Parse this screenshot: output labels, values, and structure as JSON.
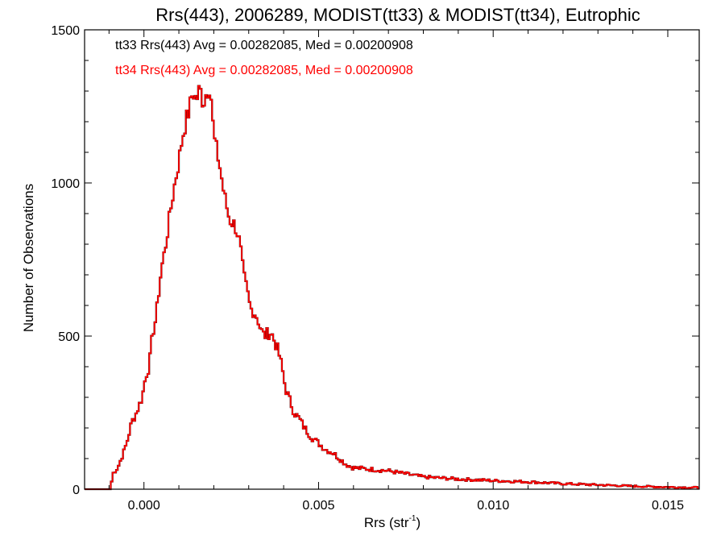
{
  "chart_data": {
    "type": "histogram",
    "title": "Rrs(443), 2006289, MODIST(tt33) & MODIST(tt34), Eutrophic",
    "xlabel_main": "Rrs (str",
    "xlabel_sup": "-1",
    "xlabel_close": ")",
    "ylabel": "Number of Observations",
    "xlim": [
      -0.0017,
      0.0159
    ],
    "ylim": [
      0,
      1500
    ],
    "x_ticks": [
      0.0,
      0.005,
      0.01,
      0.015
    ],
    "x_tick_labels": [
      "0.000",
      "0.005",
      "0.010",
      "0.015"
    ],
    "y_ticks": [
      0,
      500,
      1000,
      1500
    ],
    "y_tick_labels": [
      "0",
      "500",
      "1000",
      "1500"
    ],
    "grid": false,
    "annotations": [
      {
        "text": "tt33 Rrs(443) Avg = 0.00282085, Med = 0.00200908",
        "color": "#000000"
      },
      {
        "text": "tt34 Rrs(443) Avg = 0.00282085, Med = 0.00200908",
        "color": "#ff0000"
      }
    ],
    "series": [
      {
        "color_back": "#000000",
        "color": "#ff0000"
      }
    ],
    "curve": [
      [
        -0.0017,
        0
      ],
      [
        -0.00095,
        0
      ],
      [
        -0.0009,
        50
      ],
      [
        -0.00075,
        70
      ],
      [
        -0.00065,
        100
      ],
      [
        -0.00055,
        130
      ],
      [
        -0.00045,
        170
      ],
      [
        -0.00035,
        220
      ],
      [
        -0.00025,
        240
      ],
      [
        -0.00015,
        270
      ],
      [
        -5e-05,
        300
      ],
      [
        5e-05,
        370
      ],
      [
        0.00015,
        400
      ],
      [
        0.00025,
        510
      ],
      [
        0.00035,
        560
      ],
      [
        0.0004,
        620
      ],
      [
        0.0005,
        720
      ],
      [
        0.0006,
        780
      ],
      [
        0.0007,
        860
      ],
      [
        0.0008,
        940
      ],
      [
        0.0009,
        1010
      ],
      [
        0.001,
        1070
      ],
      [
        0.0011,
        1150
      ],
      [
        0.0012,
        1200
      ],
      [
        0.0013,
        1240
      ],
      [
        0.0014,
        1300
      ],
      [
        0.0015,
        1270
      ],
      [
        0.0016,
        1310
      ],
      [
        0.0017,
        1260
      ],
      [
        0.0018,
        1300
      ],
      [
        0.0019,
        1320
      ],
      [
        0.002,
        1150
      ],
      [
        0.00215,
        1070
      ],
      [
        0.0023,
        960
      ],
      [
        0.00245,
        880
      ],
      [
        0.00255,
        870
      ],
      [
        0.00265,
        850
      ],
      [
        0.00275,
        800
      ],
      [
        0.00285,
        700
      ],
      [
        0.00295,
        650
      ],
      [
        0.00305,
        590
      ],
      [
        0.00315,
        580
      ],
      [
        0.00325,
        560
      ],
      [
        0.00335,
        520
      ],
      [
        0.00345,
        500
      ],
      [
        0.00355,
        510
      ],
      [
        0.00365,
        510
      ],
      [
        0.00375,
        480
      ],
      [
        0.00385,
        450
      ],
      [
        0.00395,
        400
      ],
      [
        0.00405,
        330
      ],
      [
        0.00415,
        300
      ],
      [
        0.0043,
        250
      ],
      [
        0.00445,
        230
      ],
      [
        0.0046,
        200
      ],
      [
        0.0048,
        170
      ],
      [
        0.005,
        150
      ],
      [
        0.0052,
        130
      ],
      [
        0.0054,
        120
      ],
      [
        0.0056,
        100
      ],
      [
        0.0058,
        80
      ],
      [
        0.006,
        70
      ],
      [
        0.0065,
        65
      ],
      [
        0.007,
        60
      ],
      [
        0.0075,
        50
      ],
      [
        0.008,
        40
      ],
      [
        0.009,
        33
      ],
      [
        0.01,
        28
      ],
      [
        0.011,
        24
      ],
      [
        0.012,
        18
      ],
      [
        0.013,
        14
      ],
      [
        0.014,
        10
      ],
      [
        0.015,
        7
      ],
      [
        0.0159,
        5
      ]
    ]
  }
}
